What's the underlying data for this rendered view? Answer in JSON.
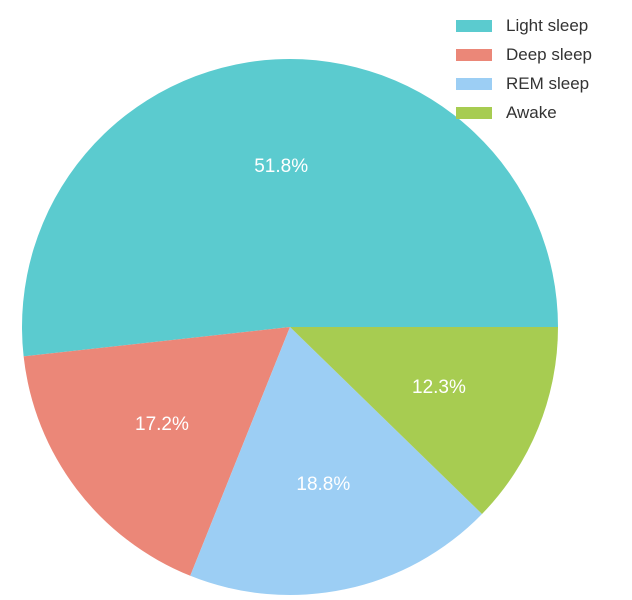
{
  "chart_data": {
    "type": "pie",
    "title": "",
    "legend_position": "top-right",
    "start_angle_deg": 0,
    "direction": "counterclockwise",
    "slices": [
      {
        "name": "Light sleep",
        "value": 51.8,
        "label": "51.8%",
        "color": "#5BCBCF"
      },
      {
        "name": "Deep sleep",
        "value": 17.2,
        "label": "17.2%",
        "color": "#EB8778"
      },
      {
        "name": "REM sleep",
        "value": 18.8,
        "label": "18.8%",
        "color": "#9CCEF4"
      },
      {
        "name": "Awake",
        "value": 12.3,
        "label": "12.3%",
        "color": "#A7CC51"
      }
    ]
  }
}
